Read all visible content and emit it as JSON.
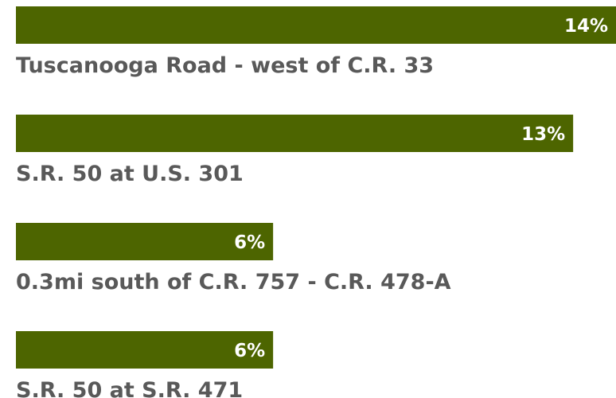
{
  "chart_data": {
    "type": "bar",
    "orientation": "horizontal",
    "categories": [
      "Tuscanooga Road - west of C.R. 33",
      "S.R. 50 at U.S. 301",
      "0.3mi south of C.R. 757 - C.R. 478-A",
      "S.R. 50 at S.R. 471"
    ],
    "values": [
      14,
      13,
      6,
      6
    ],
    "value_labels": [
      "14%",
      "13%",
      "6%",
      "6%"
    ],
    "color": "#4d6500"
  }
}
